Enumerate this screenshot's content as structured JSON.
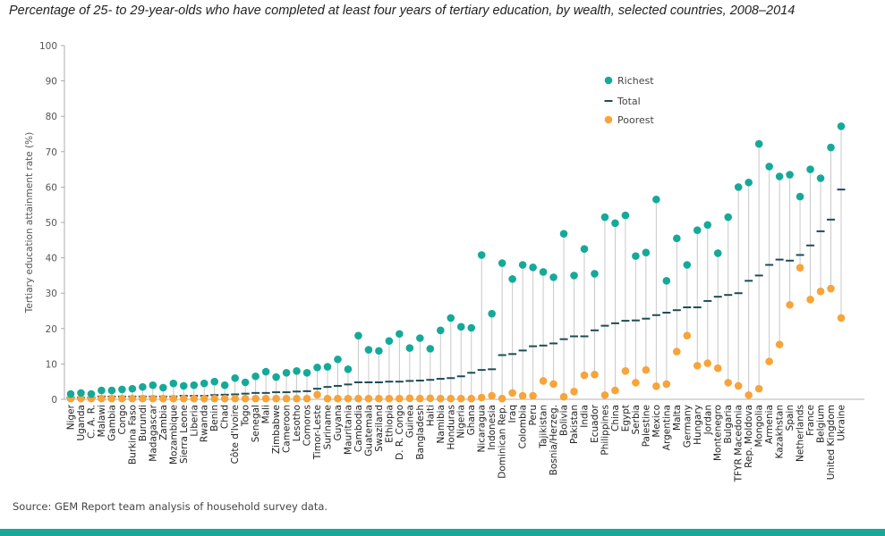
{
  "title": "Percentage of 25- to 29-year-olds who have completed at least four years of tertiary education, by wealth, selected countries, 2008–2014",
  "source": "Source: GEM Report team analysis of household survey data.",
  "colors": {
    "richest": "#16a99a",
    "poorest": "#f7a43a",
    "total": "#1d4c57",
    "connector": "#c8c8c8",
    "axis": "#999999",
    "bar": "#16a99a"
  },
  "chart_data": {
    "type": "scatter",
    "ylabel": "Tertiary education attainment rate (%)",
    "ylim": [
      0,
      100
    ],
    "yticks": [
      0,
      10,
      20,
      30,
      40,
      50,
      60,
      70,
      80,
      90,
      100
    ],
    "legend": {
      "placement": "top-right",
      "entries": [
        "Richest",
        "Total",
        "Poorest"
      ]
    },
    "categories": [
      "Niger",
      "Uganda",
      "C. A. R.",
      "Malawi",
      "Gambia",
      "Congo",
      "Burkina Faso",
      "Burundi",
      "Madagascar",
      "Zambia",
      "Mozambique",
      "Sierra Leone",
      "Liberia",
      "Rwanda",
      "Benin",
      "Chad",
      "Côte d'Ivoire",
      "Togo",
      "Senegal",
      "Mali",
      "Zimbabwe",
      "Cameroon",
      "Lesotho",
      "Comoros",
      "Timor-Leste",
      "Suriname",
      "Guyana",
      "Mauritania",
      "Cambodia",
      "Guatemala",
      "Swaziland",
      "Ethiopia",
      "D. R. Congo",
      "Guinea",
      "Bangladesh",
      "Haiti",
      "Namibia",
      "Honduras",
      "Nigeria",
      "Ghana",
      "Nicaragua",
      "Indonesia",
      "Dominican Rep.",
      "Iraq",
      "Colombia",
      "Peru",
      "Tajikistan",
      "Bosnia/Herzeg.",
      "Bolivia",
      "Pakistan",
      "India",
      "Ecuador",
      "Philippines",
      "China",
      "Egypt",
      "Serbia",
      "Palestine",
      "Mexico",
      "Argentina",
      "Malta",
      "Germany",
      "Hungary",
      "Jordan",
      "Montenegro",
      "Bulgaria",
      "TFYR Macedonia",
      "Rep. Moldova",
      "Mongolia",
      "Armenia",
      "Kazakhstan",
      "Spain",
      "Netherlands",
      "France",
      "Belgium",
      "United Kingdom",
      "Ukraine"
    ],
    "series": [
      {
        "name": "Richest",
        "values": [
          1.5,
          1.8,
          1.5,
          2.5,
          2.5,
          2.8,
          3,
          3.5,
          4,
          3.3,
          4.5,
          3.8,
          4,
          4.5,
          5,
          4,
          6,
          4.8,
          6.5,
          7.8,
          6.3,
          7.5,
          8,
          7.5,
          9,
          9.2,
          11.3,
          8.5,
          18,
          14,
          13.7,
          16.5,
          18.5,
          14.5,
          17.3,
          14.3,
          19.5,
          23,
          20.5,
          20.2,
          40.8,
          24.2,
          38.5,
          34,
          38,
          37.3,
          36,
          34.5,
          46.8,
          35,
          42.5,
          35.5,
          51.5,
          49.8,
          52,
          40.5,
          41.5,
          56.5,
          33.5,
          45.5,
          38,
          47.8,
          49.3,
          41.3,
          51.5,
          60,
          61.3,
          72.2,
          65.8,
          63,
          63.5,
          57.3,
          65,
          62.5,
          71.2,
          77.2
        ]
      },
      {
        "name": "Total",
        "values": [
          0.5,
          0.5,
          0.5,
          0.8,
          0.8,
          0.8,
          0.8,
          0.8,
          0.8,
          0.8,
          0.8,
          1,
          1,
          1,
          1.2,
          1.3,
          1.4,
          1.6,
          1.8,
          1.8,
          2,
          2,
          2.2,
          2.3,
          3,
          3.5,
          3.8,
          4.2,
          4.8,
          4.8,
          4.8,
          5,
          5,
          5.2,
          5.3,
          5.5,
          5.8,
          6,
          6.5,
          7.5,
          8.3,
          8.5,
          12.5,
          12.8,
          13.8,
          15,
          15.2,
          15.8,
          17,
          17.8,
          17.8,
          19.5,
          20.8,
          21.5,
          22.2,
          22.3,
          22.8,
          23.8,
          24.5,
          25.2,
          26,
          26,
          27.8,
          29,
          29.5,
          30,
          33.5,
          35,
          38,
          39.5,
          39.2,
          40.8,
          43.5,
          47.5,
          50.8,
          59.3
        ]
      },
      {
        "name": "Poorest",
        "values": [
          0.2,
          0.2,
          0.2,
          0.2,
          0.2,
          0.2,
          0.2,
          0.2,
          0.2,
          0.2,
          0.2,
          0.2,
          0.2,
          0.2,
          0.2,
          0.2,
          0.2,
          0.2,
          0.2,
          0.2,
          0.2,
          0.2,
          0.2,
          0.2,
          1.3,
          0.2,
          0.2,
          0.2,
          0.2,
          0.2,
          0.2,
          0.2,
          0.2,
          0.3,
          0.2,
          0.3,
          0.2,
          0.2,
          0.2,
          0.2,
          0.5,
          1,
          0.2,
          1.8,
          1,
          1,
          5.2,
          4.3,
          0.7,
          2.2,
          6.8,
          7,
          1.2,
          2.5,
          8,
          4.7,
          8.3,
          3.7,
          4.3,
          13.5,
          18,
          9.5,
          10.2,
          8.8,
          4.7,
          3.8,
          1.2,
          3,
          10.7,
          15.5,
          26.7,
          37.2,
          28.2,
          30.5,
          31.3,
          23
        ]
      }
    ]
  }
}
